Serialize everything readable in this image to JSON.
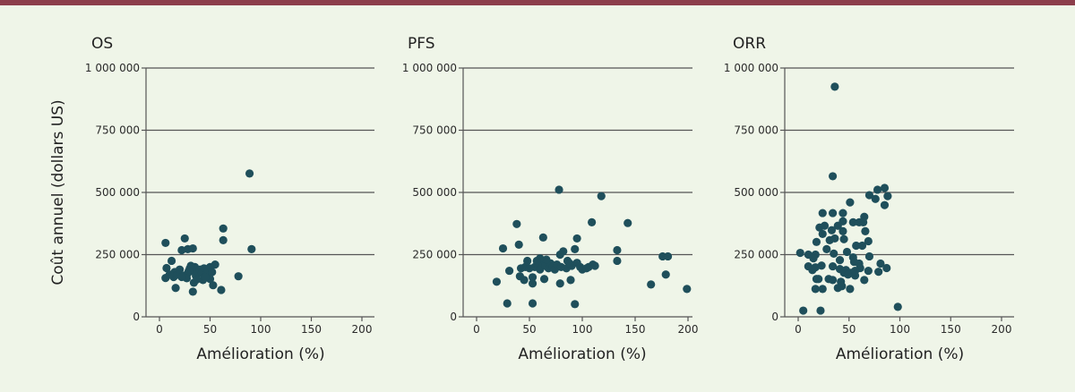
{
  "colors": {
    "top_bar": "#8c3e4b",
    "background": "#eff5e8",
    "points": "#1f4f5b",
    "grid": "#4a4a4a"
  },
  "ylabel": "Coût annuel (dollars US)",
  "chart_data": [
    {
      "type": "scatter",
      "title": "OS",
      "xlabel": "Amélioration (%)",
      "ylabel": "Coût annuel (dollars US)",
      "xlim": [
        0,
        200
      ],
      "ylim": [
        0,
        1000000
      ],
      "xticks": [
        0,
        50,
        100,
        150,
        200
      ],
      "xtick_labels": [
        "0",
        "50",
        "100",
        "150",
        "200"
      ],
      "yticks": [
        0,
        250000,
        500000,
        750000,
        1000000
      ],
      "ytick_labels": [
        "0",
        "250 000",
        "500 000",
        "750 000",
        "1 000 000"
      ],
      "grid": "horizontal",
      "points": [
        [
          89,
          576000
        ],
        [
          63,
          355000
        ],
        [
          63,
          308000
        ],
        [
          91,
          272000
        ],
        [
          6,
          297000
        ],
        [
          25,
          315000
        ],
        [
          22,
          268000
        ],
        [
          28,
          272000
        ],
        [
          33,
          275000
        ],
        [
          12,
          225000
        ],
        [
          7,
          196000
        ],
        [
          6,
          156000
        ],
        [
          16,
          116000
        ],
        [
          33,
          101000
        ],
        [
          34,
          137000
        ],
        [
          53,
          127000
        ],
        [
          61,
          108000
        ],
        [
          78,
          163000
        ],
        [
          55,
          210000
        ],
        [
          43,
          148000
        ],
        [
          50,
          152000
        ],
        [
          15,
          180000
        ],
        [
          18,
          170000
        ],
        [
          20,
          190000
        ],
        [
          24,
          165000
        ],
        [
          28,
          175000
        ],
        [
          30,
          195000
        ],
        [
          32,
          185000
        ],
        [
          35,
          200000
        ],
        [
          36,
          165000
        ],
        [
          38,
          180000
        ],
        [
          40,
          190000
        ],
        [
          42,
          175000
        ],
        [
          44,
          195000
        ],
        [
          46,
          170000
        ],
        [
          48,
          185000
        ],
        [
          50,
          200000
        ],
        [
          52,
          180000
        ],
        [
          27,
          155000
        ],
        [
          14,
          160000
        ],
        [
          31,
          205000
        ],
        [
          37,
          150000
        ],
        [
          45,
          160000
        ],
        [
          29,
          185000
        ],
        [
          10,
          170000
        ],
        [
          22,
          160000
        ]
      ]
    },
    {
      "type": "scatter",
      "title": "PFS",
      "xlabel": "Amélioration (%)",
      "xlim": [
        0,
        200
      ],
      "ylim": [
        0,
        1000000
      ],
      "xticks": [
        0,
        50,
        100,
        150,
        200
      ],
      "xtick_labels": [
        "0",
        "50",
        "100",
        "150",
        "200"
      ],
      "yticks": [
        0,
        250000,
        500000,
        750000,
        1000000
      ],
      "ytick_labels": [
        "0",
        "250 000",
        "500 000",
        "750 000",
        "1 000 000"
      ],
      "grid": "horizontal",
      "points": [
        [
          78,
          511000
        ],
        [
          118,
          485000
        ],
        [
          38,
          373000
        ],
        [
          109,
          380000
        ],
        [
          143,
          377000
        ],
        [
          63,
          319000
        ],
        [
          95,
          315000
        ],
        [
          25,
          275000
        ],
        [
          40,
          290000
        ],
        [
          133,
          268000
        ],
        [
          133,
          225000
        ],
        [
          176,
          243000
        ],
        [
          181,
          243000
        ],
        [
          179,
          170000
        ],
        [
          165,
          130000
        ],
        [
          199,
          112000
        ],
        [
          19,
          141000
        ],
        [
          31,
          185000
        ],
        [
          29,
          54000
        ],
        [
          53,
          54000
        ],
        [
          93,
          51000
        ],
        [
          79,
          134000
        ],
        [
          89,
          148000
        ],
        [
          64,
          152000
        ],
        [
          53,
          134000
        ],
        [
          53,
          159000
        ],
        [
          45,
          148000
        ],
        [
          41,
          163000
        ],
        [
          79,
          250000
        ],
        [
          82,
          263000
        ],
        [
          93,
          272000
        ],
        [
          110,
          210000
        ],
        [
          86,
          225000
        ],
        [
          95,
          217000
        ],
        [
          42,
          195000
        ],
        [
          46,
          200000
        ],
        [
          50,
          195000
        ],
        [
          55,
          200000
        ],
        [
          58,
          210000
        ],
        [
          60,
          190000
        ],
        [
          62,
          220000
        ],
        [
          65,
          205000
        ],
        [
          68,
          195000
        ],
        [
          70,
          215000
        ],
        [
          72,
          200000
        ],
        [
          74,
          190000
        ],
        [
          76,
          210000
        ],
        [
          66,
          230000
        ],
        [
          60,
          235000
        ],
        [
          85,
          195000
        ],
        [
          90,
          205000
        ],
        [
          98,
          200000
        ],
        [
          100,
          190000
        ],
        [
          104,
          195000
        ],
        [
          106,
          200000
        ],
        [
          112,
          205000
        ],
        [
          57,
          225000
        ],
        [
          48,
          225000
        ],
        [
          80,
          200000
        ],
        [
          88,
          215000
        ]
      ]
    },
    {
      "type": "scatter",
      "title": "ORR",
      "xlabel": "Amélioration (%)",
      "xlim": [
        0,
        200
      ],
      "ylim": [
        0,
        1000000
      ],
      "xticks": [
        0,
        50,
        100,
        150,
        200
      ],
      "xtick_labels": [
        "0",
        "50",
        "100",
        "150",
        "200"
      ],
      "yticks": [
        0,
        250000,
        500000,
        750000,
        1000000
      ],
      "ytick_labels": [
        "0",
        "250 000",
        "500 000",
        "750 000",
        "1 000 000"
      ],
      "grid": "horizontal",
      "points": [
        [
          36,
          925000
        ],
        [
          34,
          565000
        ],
        [
          78,
          511000
        ],
        [
          85,
          518000
        ],
        [
          70,
          489000
        ],
        [
          76,
          474000
        ],
        [
          88,
          485000
        ],
        [
          85,
          449000
        ],
        [
          51,
          460000
        ],
        [
          24,
          417000
        ],
        [
          34,
          417000
        ],
        [
          44,
          417000
        ],
        [
          65,
          402000
        ],
        [
          54,
          380000
        ],
        [
          60,
          380000
        ],
        [
          64,
          380000
        ],
        [
          44,
          384000
        ],
        [
          21,
          359000
        ],
        [
          26,
          366000
        ],
        [
          39,
          366000
        ],
        [
          33,
          348000
        ],
        [
          44,
          344000
        ],
        [
          66,
          344000
        ],
        [
          24,
          333000
        ],
        [
          31,
          308000
        ],
        [
          36,
          315000
        ],
        [
          45,
          312000
        ],
        [
          18,
          301000
        ],
        [
          69,
          304000
        ],
        [
          57,
          286000
        ],
        [
          63,
          286000
        ],
        [
          28,
          272000
        ],
        [
          2,
          257000
        ],
        [
          10,
          250000
        ],
        [
          17,
          250000
        ],
        [
          35,
          254000
        ],
        [
          48,
          261000
        ],
        [
          70,
          243000
        ],
        [
          54,
          239000
        ],
        [
          41,
          228000
        ],
        [
          15,
          235000
        ],
        [
          81,
          214000
        ],
        [
          87,
          196000
        ],
        [
          79,
          181000
        ],
        [
          69,
          185000
        ],
        [
          10,
          203000
        ],
        [
          17,
          199000
        ],
        [
          23,
          206000
        ],
        [
          34,
          203000
        ],
        [
          41,
          192000
        ],
        [
          47,
          188000
        ],
        [
          56,
          185000
        ],
        [
          61,
          196000
        ],
        [
          60,
          214000
        ],
        [
          55,
          221000
        ],
        [
          14,
          188000
        ],
        [
          18,
          152000
        ],
        [
          20,
          152000
        ],
        [
          30,
          152000
        ],
        [
          34,
          148000
        ],
        [
          42,
          141000
        ],
        [
          39,
          116000
        ],
        [
          43,
          123000
        ],
        [
          17,
          112000
        ],
        [
          24,
          112000
        ],
        [
          51,
          112000
        ],
        [
          65,
          148000
        ],
        [
          56,
          166000
        ],
        [
          52,
          177000
        ],
        [
          5,
          25000
        ],
        [
          22,
          25000
        ],
        [
          98,
          40000
        ],
        [
          45,
          177000
        ],
        [
          49,
          170000
        ]
      ]
    }
  ]
}
